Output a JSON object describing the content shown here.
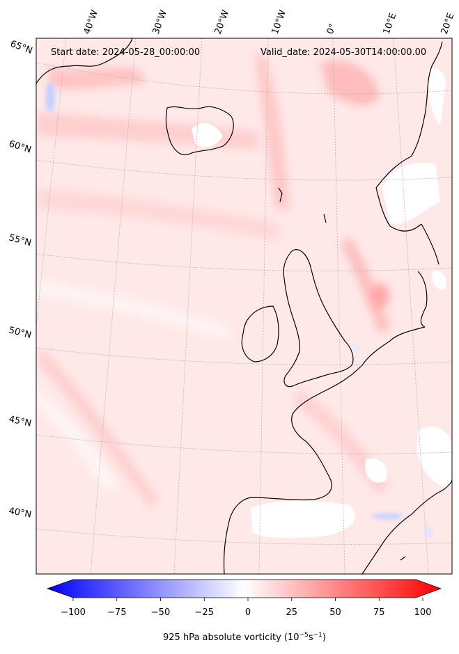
{
  "header": {
    "start_date": "Start date: 2024-05-28_00:00:00",
    "valid_date": "Valid_date: 2024-05-30T14:00:00.00"
  },
  "map": {
    "longitude_labels": [
      "40°W",
      "30°W",
      "20°W",
      "10°W",
      "0°",
      "10°E",
      "20°E"
    ],
    "latitude_labels": [
      "65°N",
      "60°N",
      "55°N",
      "50°N",
      "45°N",
      "40°N"
    ]
  },
  "colorbar": {
    "ticks": [
      "−100",
      "−75",
      "−50",
      "−25",
      "0",
      "25",
      "50",
      "75",
      "100"
    ],
    "label_main": "925 hPa absolute vorticity (10",
    "label_exp1": "−5",
    "label_mid": "s",
    "label_exp2": "−1",
    "label_end": ")",
    "min_color": "#0000ff",
    "mid_color": "#ffffff",
    "max_color": "#ff0000"
  }
}
